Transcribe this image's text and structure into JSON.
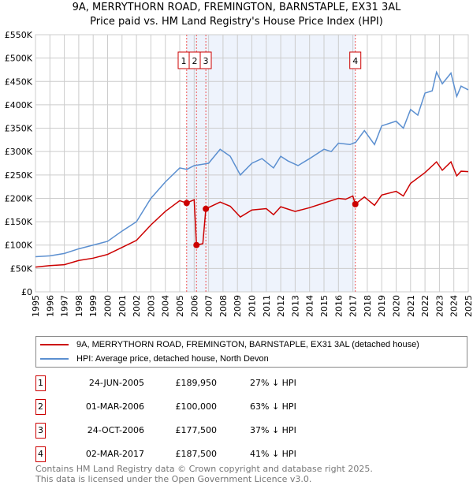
{
  "chart_data": {
    "type": "line",
    "title": "9A, MERRYTHORN ROAD, FREMINGTON, BARNSTAPLE, EX31 3AL",
    "subtitle": "Price paid vs. HM Land Registry's House Price Index (HPI)",
    "xlim": [
      1995,
      2025
    ],
    "ylim": [
      0,
      550000
    ],
    "x_ticks": [
      "1995",
      "1996",
      "1997",
      "1998",
      "1999",
      "2000",
      "2001",
      "2002",
      "2003",
      "2004",
      "2005",
      "2006",
      "2007",
      "2008",
      "2009",
      "2010",
      "2011",
      "2012",
      "2013",
      "2014",
      "2015",
      "2016",
      "2017",
      "2018",
      "2019",
      "2020",
      "2021",
      "2022",
      "2023",
      "2024",
      "2025"
    ],
    "y_ticks": [
      {
        "v": 0,
        "label": "£0"
      },
      {
        "v": 50000,
        "label": "£50K"
      },
      {
        "v": 100000,
        "label": "£100K"
      },
      {
        "v": 150000,
        "label": "£150K"
      },
      {
        "v": 200000,
        "label": "£200K"
      },
      {
        "v": 250000,
        "label": "£250K"
      },
      {
        "v": 300000,
        "label": "£300K"
      },
      {
        "v": 350000,
        "label": "£350K"
      },
      {
        "v": 400000,
        "label": "£400K"
      },
      {
        "v": 450000,
        "label": "£450K"
      },
      {
        "v": 500000,
        "label": "£500K"
      },
      {
        "v": 550000,
        "label": "£550K"
      }
    ],
    "grid": true,
    "series": [
      {
        "name": "9A, MERRYTHORN ROAD, FREMINGTON, BARNSTAPLE, EX31 3AL (detached house)",
        "color": "#cc0000",
        "points": [
          [
            1995,
            53000
          ],
          [
            1996,
            56000
          ],
          [
            1997,
            58000
          ],
          [
            1998,
            67000
          ],
          [
            1999,
            72000
          ],
          [
            2000,
            80000
          ],
          [
            2001,
            95000
          ],
          [
            2002,
            110000
          ],
          [
            2003,
            143000
          ],
          [
            2004,
            172000
          ],
          [
            2005,
            195000
          ],
          [
            2005.48,
            189950
          ],
          [
            2006,
            197000
          ],
          [
            2006.16,
            100000
          ],
          [
            2006.6,
            103000
          ],
          [
            2006.81,
            177500
          ],
          [
            2007.8,
            192000
          ],
          [
            2008.5,
            183000
          ],
          [
            2009.2,
            160000
          ],
          [
            2010,
            175000
          ],
          [
            2011,
            178000
          ],
          [
            2011.5,
            165000
          ],
          [
            2012,
            182000
          ],
          [
            2013,
            172000
          ],
          [
            2014,
            180000
          ],
          [
            2015,
            190000
          ],
          [
            2016,
            200000
          ],
          [
            2016.5,
            198000
          ],
          [
            2017,
            205000
          ],
          [
            2017.17,
            187500
          ],
          [
            2017.8,
            203000
          ],
          [
            2018.5,
            185000
          ],
          [
            2019,
            207000
          ],
          [
            2020,
            215000
          ],
          [
            2020.5,
            205000
          ],
          [
            2021,
            232000
          ],
          [
            2022,
            255000
          ],
          [
            2022.8,
            278000
          ],
          [
            2023.2,
            260000
          ],
          [
            2023.8,
            278000
          ],
          [
            2024.2,
            248000
          ],
          [
            2024.5,
            258000
          ],
          [
            2025,
            257000
          ]
        ]
      },
      {
        "name": "HPI: Average price, detached house, North Devon",
        "color": "#5b8fd0",
        "points": [
          [
            1995,
            75000
          ],
          [
            1996,
            77000
          ],
          [
            1997,
            82000
          ],
          [
            1998,
            92000
          ],
          [
            1999,
            100000
          ],
          [
            2000,
            108000
          ],
          [
            2001,
            130000
          ],
          [
            2002,
            150000
          ],
          [
            2003,
            200000
          ],
          [
            2004,
            235000
          ],
          [
            2005,
            265000
          ],
          [
            2005.5,
            262000
          ],
          [
            2006,
            270000
          ],
          [
            2007,
            275000
          ],
          [
            2007.8,
            305000
          ],
          [
            2008.5,
            290000
          ],
          [
            2009.2,
            250000
          ],
          [
            2010,
            275000
          ],
          [
            2010.7,
            285000
          ],
          [
            2011.5,
            265000
          ],
          [
            2012,
            290000
          ],
          [
            2012.5,
            280000
          ],
          [
            2013.2,
            270000
          ],
          [
            2014,
            285000
          ],
          [
            2015,
            305000
          ],
          [
            2015.5,
            300000
          ],
          [
            2016,
            318000
          ],
          [
            2016.8,
            315000
          ],
          [
            2017.2,
            320000
          ],
          [
            2017.8,
            345000
          ],
          [
            2018.5,
            315000
          ],
          [
            2019,
            355000
          ],
          [
            2020,
            365000
          ],
          [
            2020.5,
            350000
          ],
          [
            2021,
            390000
          ],
          [
            2021.5,
            378000
          ],
          [
            2022,
            425000
          ],
          [
            2022.5,
            430000
          ],
          [
            2022.8,
            470000
          ],
          [
            2023.2,
            445000
          ],
          [
            2023.8,
            468000
          ],
          [
            2024.2,
            418000
          ],
          [
            2024.5,
            440000
          ],
          [
            2025,
            432000
          ]
        ]
      }
    ],
    "sales": [
      {
        "id": "1",
        "x": 2005.48,
        "date": "24-JUN-2005",
        "value": 189950,
        "price": "£189,950",
        "diff": "27% ↓ HPI"
      },
      {
        "id": "2",
        "x": 2006.16,
        "date": "01-MAR-2006",
        "value": 100000,
        "price": "£100,000",
        "diff": "63% ↓ HPI"
      },
      {
        "id": "3",
        "x": 2006.81,
        "date": "24-OCT-2006",
        "value": 177500,
        "price": "£177,500",
        "diff": "37% ↓ HPI"
      },
      {
        "id": "4",
        "x": 2017.17,
        "date": "02-MAR-2017",
        "value": 187500,
        "price": "£187,500",
        "diff": "41% ↓ HPI"
      }
    ],
    "legend": "below"
  },
  "footer": {
    "line1": "Contains HM Land Registry data © Crown copyright and database right 2025.",
    "line2": "This data is licensed under the Open Government Licence v3.0."
  },
  "colors": {
    "red": "#cc0000",
    "blue": "#5b8fd0",
    "shade": "#eef3fc"
  }
}
